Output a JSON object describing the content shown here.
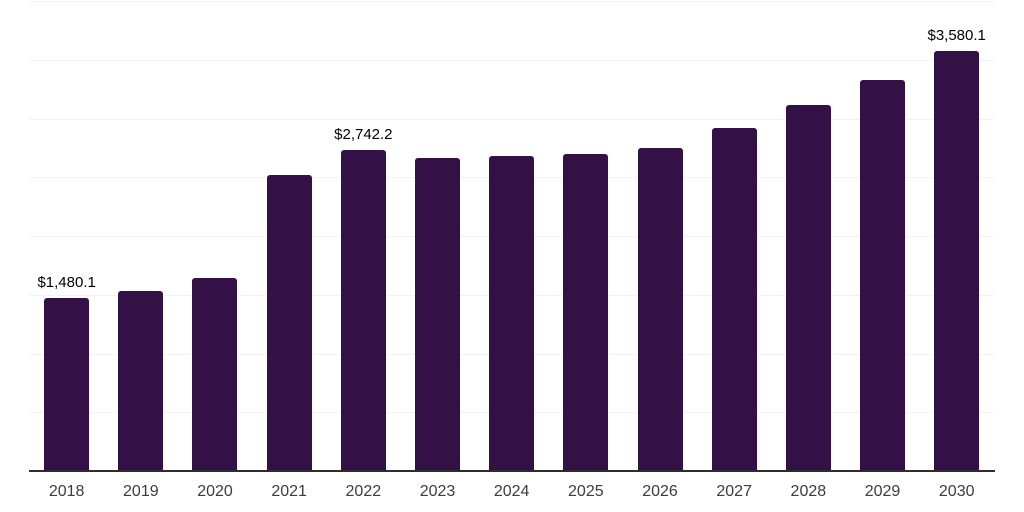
{
  "chart_data": {
    "type": "bar",
    "title": "",
    "xlabel": "",
    "ylabel": "",
    "categories": [
      "2018",
      "2019",
      "2020",
      "2021",
      "2022",
      "2023",
      "2024",
      "2025",
      "2026",
      "2027",
      "2028",
      "2029",
      "2030"
    ],
    "values": [
      1480.1,
      1540,
      1650,
      2530,
      2742.2,
      2670,
      2690,
      2710,
      2760,
      2930,
      3120,
      3340,
      3580.1
    ],
    "data_labels": [
      {
        "index": 0,
        "text": "$1,480.1"
      },
      {
        "index": 4,
        "text": "$2,742.2"
      },
      {
        "index": 12,
        "text": "$3,580.1"
      }
    ],
    "ylim": [
      0,
      4000
    ],
    "gridline_step": 500,
    "grid": true,
    "legend": "none",
    "colors": {
      "bar": "#331146",
      "axis_line": "#2d2d2d",
      "gridline": "#f2f2f2",
      "tick_label": "#3c3c3c",
      "value_label": "#000000",
      "background": "#ffffff"
    }
  }
}
